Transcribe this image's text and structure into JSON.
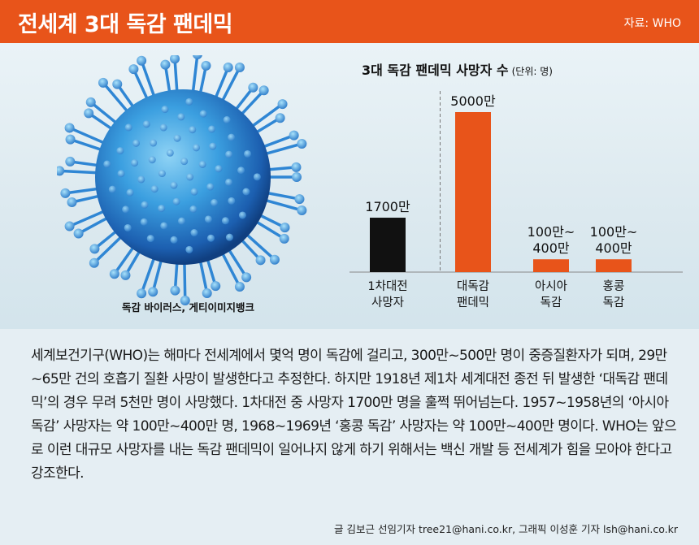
{
  "header": {
    "title": "전세계 3대 독감 팬데믹",
    "source": "자료: WHO"
  },
  "photo": {
    "caption": "독감 바이러스, 게티이미지뱅크"
  },
  "chart_title": {
    "main": "3대 독감 팬데믹 사망자 수",
    "unit": "(단위: 명)"
  },
  "chart_data": {
    "type": "bar",
    "title": "3대 독감 팬데믹 사망자 수",
    "unit_label": "(단위: 명)",
    "categories": [
      [
        "1차대전",
        "사망자"
      ],
      [
        "대독감",
        "팬데믹"
      ],
      [
        "아시아",
        "독감"
      ],
      [
        "홍콩",
        "독감"
      ]
    ],
    "values": [
      17000000,
      50000000,
      4000000,
      4000000
    ],
    "value_labels": [
      [
        "1700만"
      ],
      [
        "5000만"
      ],
      [
        "100만~",
        "400만"
      ],
      [
        "100만~",
        "400만"
      ]
    ],
    "colors": [
      "#111111",
      "#e8541a",
      "#e8541a",
      "#e8541a"
    ],
    "ylim": [
      0,
      50000000
    ],
    "divider_after_index": 0
  },
  "body": {
    "paragraph": "세계보건기구(WHO)는 해마다 전세계에서 몇억 명이 독감에 걸리고, 300만~500만 명이 중증질환자가 되며, 29만~65만 건의 호흡기 질환 사망이 발생한다고 추정한다. 하지만 1918년 제1차 세계대전 종전 뒤 발생한 ‘대독감 팬데믹’의 경우 무려 5천만 명이 사망했다. 1차대전 중 사망자 1700만 명을 훌쩍 뛰어넘는다. 1957~1958년의 ‘아시아 독감’ 사망자는 약 100만~400만 명, 1968~1969년 ‘홍콩 독감’ 사망자는 약 100만~400만 명이다. WHO는 앞으로 이런 대규모 사망자를 내는 독감 팬데믹이 일어나지 않게 하기 위해서는 백신 개발 등 전세계가 힘을 모아야 한다고 강조한다.",
    "credit": "글 김보근 선임기자 tree21@hani.co.kr, 그래픽 이성훈 기자 lsh@hani.co.kr"
  }
}
